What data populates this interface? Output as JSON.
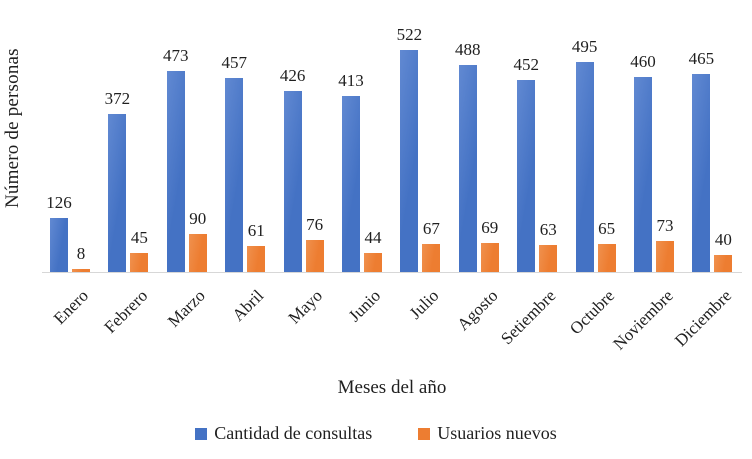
{
  "chart_data": {
    "type": "bar",
    "categories": [
      "Enero",
      "Febrero",
      "Marzo",
      "Abril",
      "Mayo",
      "Junio",
      "Julio",
      "Agosto",
      "Setiembre",
      "Octubre",
      "Noviembre",
      "Diciembre"
    ],
    "series": [
      {
        "name": "Cantidad de consultas",
        "color": "#4472C4",
        "values": [
          126,
          372,
          473,
          457,
          426,
          413,
          522,
          488,
          452,
          495,
          460,
          465
        ]
      },
      {
        "name": "Usuarios nuevos",
        "color": "#ED7D31",
        "values": [
          8,
          45,
          90,
          61,
          76,
          44,
          67,
          69,
          63,
          65,
          73,
          40
        ]
      }
    ],
    "title": "",
    "xlabel": "Meses del año",
    "ylabel": "Número de personas",
    "ylim": [
      0,
      560
    ],
    "grid": false,
    "legend_position": "bottom",
    "data_labels": true
  }
}
